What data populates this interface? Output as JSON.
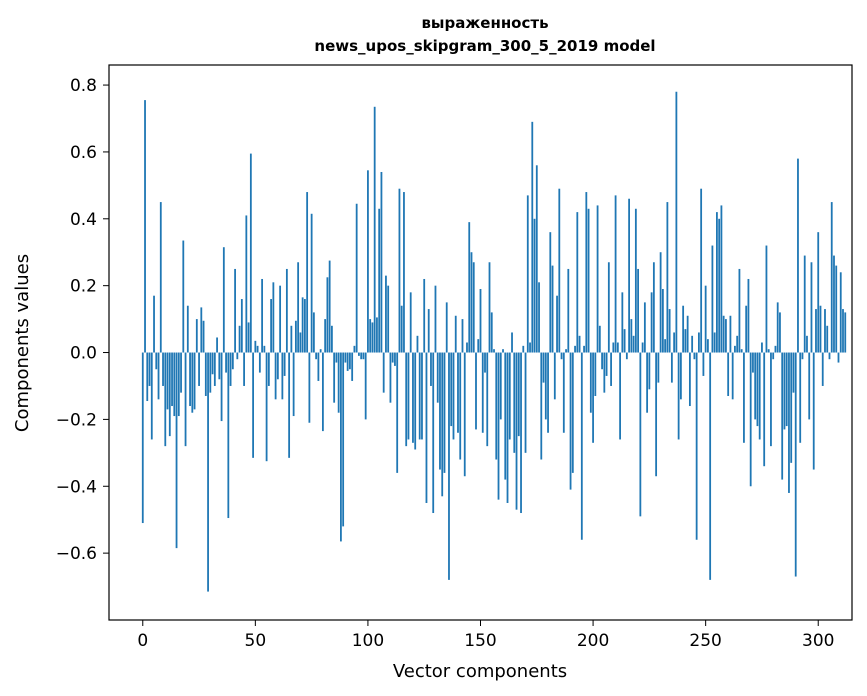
{
  "chart_data": {
    "type": "bar",
    "title": "выраженность",
    "subtitle": "news_upos_skipgram_300_5_2019 model",
    "xlabel": "Vector components",
    "ylabel": "Components values",
    "xlim": [
      -15,
      315
    ],
    "ylim": [
      -0.8,
      0.86
    ],
    "xticks": [
      0,
      50,
      100,
      150,
      200,
      250,
      300
    ],
    "xtick_labels": [
      "0",
      "50",
      "100",
      "150",
      "200",
      "250",
      "300"
    ],
    "yticks": [
      0.8,
      0.6,
      0.4,
      0.2,
      0.0,
      -0.2,
      -0.4,
      -0.6
    ],
    "ytick_labels": [
      "0.8",
      "0.6",
      "0.4",
      "0.2",
      "0.0",
      "−0.2",
      "−0.4",
      "−0.6"
    ],
    "grid": false,
    "bar_color": "#1f77b4",
    "values": [
      -0.51,
      0.755,
      -0.145,
      -0.1,
      -0.26,
      0.17,
      -0.05,
      -0.14,
      0.45,
      -0.1,
      -0.28,
      -0.17,
      -0.25,
      -0.16,
      -0.19,
      -0.585,
      -0.19,
      -0.12,
      0.335,
      -0.28,
      0.14,
      -0.16,
      -0.18,
      -0.17,
      0.1,
      -0.1,
      0.135,
      0.095,
      -0.13,
      -0.715,
      -0.12,
      -0.065,
      -0.1,
      0.045,
      -0.08,
      -0.205,
      0.315,
      -0.06,
      -0.495,
      -0.1,
      -0.05,
      0.25,
      -0.02,
      0.08,
      0.16,
      -0.1,
      0.41,
      0.09,
      0.595,
      -0.315,
      0.035,
      0.02,
      -0.06,
      0.22,
      0.02,
      -0.325,
      -0.1,
      0.16,
      0.21,
      -0.14,
      -0.08,
      0.2,
      -0.14,
      -0.07,
      0.25,
      -0.315,
      0.08,
      -0.19,
      0.095,
      0.27,
      0.06,
      0.165,
      0.16,
      0.48,
      -0.21,
      0.415,
      0.12,
      -0.02,
      -0.085,
      0.01,
      -0.235,
      0.1,
      0.225,
      0.275,
      0.08,
      -0.15,
      -0.03,
      -0.18,
      -0.565,
      -0.52,
      -0.03,
      -0.055,
      -0.05,
      -0.085,
      0.02,
      0.445,
      -0.01,
      -0.02,
      -0.02,
      -0.2,
      0.545,
      0.1,
      0.09,
      0.735,
      0.105,
      0.43,
      0.54,
      -0.12,
      0.23,
      0.2,
      -0.15,
      -0.03,
      -0.04,
      -0.36,
      0.49,
      0.14,
      0.48,
      -0.28,
      -0.26,
      0.18,
      -0.27,
      -0.29,
      0.05,
      -0.26,
      -0.26,
      0.22,
      -0.45,
      0.13,
      -0.1,
      -0.48,
      0.2,
      -0.15,
      -0.35,
      -0.43,
      -0.36,
      0.15,
      -0.68,
      -0.22,
      -0.26,
      0.11,
      -0.24,
      -0.32,
      0.1,
      -0.37,
      0.03,
      0.39,
      0.3,
      0.27,
      -0.23,
      0.04,
      0.19,
      -0.24,
      -0.06,
      -0.28,
      0.27,
      0.12,
      0.01,
      -0.32,
      -0.44,
      -0.2,
      0.01,
      -0.38,
      -0.45,
      -0.26,
      0.06,
      -0.3,
      -0.47,
      -0.25,
      -0.48,
      0.02,
      -0.3,
      0.47,
      0.03,
      0.69,
      0.4,
      0.56,
      0.21,
      -0.32,
      -0.09,
      -0.2,
      -0.24,
      0.36,
      0.26,
      -0.14,
      0.17,
      0.49,
      -0.02,
      -0.24,
      0.01,
      0.25,
      -0.41,
      -0.36,
      0.02,
      0.42,
      0.05,
      -0.56,
      0.02,
      0.48,
      0.43,
      -0.18,
      -0.27,
      -0.13,
      0.44,
      0.08,
      -0.05,
      -0.12,
      -0.07,
      0.27,
      -0.1,
      0.03,
      0.47,
      0.03,
      -0.26,
      0.18,
      0.07,
      -0.02,
      0.46,
      0.1,
      0.05,
      0.43,
      0.25,
      -0.49,
      0.03,
      0.15,
      -0.18,
      -0.11,
      0.18,
      0.27,
      -0.37,
      -0.09,
      0.3,
      0.19,
      0.04,
      0.45,
      0.13,
      -0.09,
      0.06,
      0.78,
      -0.26,
      -0.14,
      0.14,
      0.07,
      0.11,
      -0.16,
      0.05,
      -0.02,
      -0.56,
      0.06,
      0.49,
      -0.07,
      0.2,
      0.04,
      -0.68,
      0.32,
      0.06,
      0.42,
      0.4,
      0.44,
      0.11,
      0.1,
      -0.13,
      0.11,
      -0.14,
      0.02,
      0.05,
      0.25,
      0.01,
      -0.27,
      0.14,
      0.22,
      -0.4,
      -0.06,
      -0.2,
      -0.22,
      -0.26,
      0.03,
      -0.34,
      0.32,
      0.01,
      -0.28,
      -0.02,
      0.02,
      0.15,
      0.12,
      -0.38,
      -0.23,
      -0.22,
      -0.42,
      -0.33,
      -0.12,
      -0.67,
      0.58,
      -0.27,
      -0.02,
      0.29,
      0.05,
      -0.2,
      0.27,
      -0.35,
      0.13,
      0.36,
      0.14,
      -0.1,
      0.13,
      0.08,
      -0.02,
      0.45,
      0.29,
      0.26,
      -0.03,
      0.24,
      0.13,
      0.12
    ]
  }
}
